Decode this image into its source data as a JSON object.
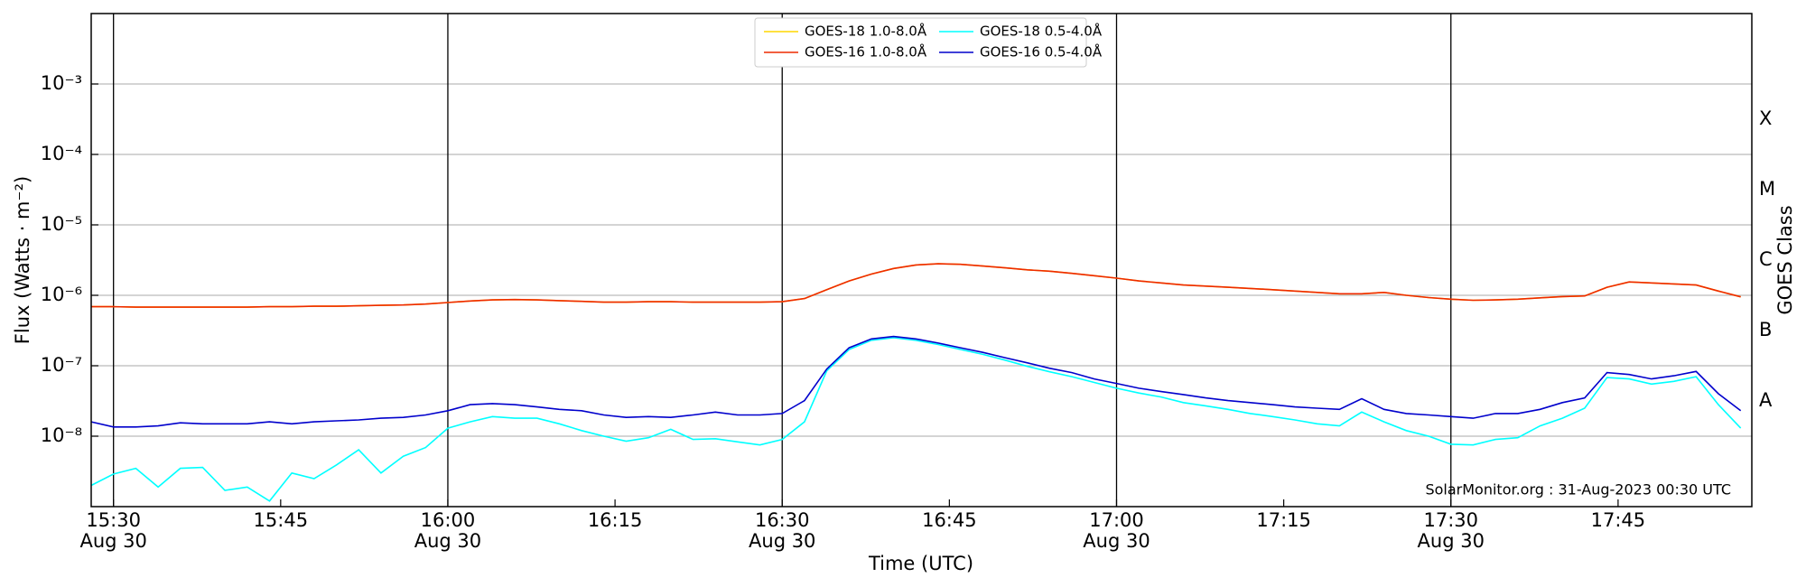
{
  "chart_data": {
    "type": "line",
    "y_label": "Flux (Watts · m⁻²)",
    "x_label": "Time (UTC)",
    "y2_label": "GOES Class",
    "annotation": "SolarMonitor.org : 31-Aug-2023 00:30 UTC",
    "log_y": true,
    "grid": true,
    "legend": "upper center",
    "xlim": [
      "15:28",
      "17:57"
    ],
    "xticks": [
      {
        "value": "15:30",
        "label": "15:30",
        "date": "Aug 30"
      },
      {
        "value": "15:45",
        "label": "15:45"
      },
      {
        "value": "16:00",
        "label": "16:00",
        "date": "Aug 30"
      },
      {
        "value": "16:15",
        "label": "16:15"
      },
      {
        "value": "16:30",
        "label": "16:30",
        "date": "Aug 30"
      },
      {
        "value": "16:45",
        "label": "16:45"
      },
      {
        "value": "17:00",
        "label": "17:00",
        "date": "Aug 30"
      },
      {
        "value": "17:15",
        "label": "17:15"
      },
      {
        "value": "17:30",
        "label": "17:30",
        "date": "Aug 30"
      },
      {
        "value": "17:45",
        "label": "17:45"
      }
    ],
    "ylim": [
      1e-09,
      0.01
    ],
    "yticks": [
      {
        "value": 1e-08,
        "label": "10⁻⁸"
      },
      {
        "value": 1e-07,
        "label": "10⁻⁷"
      },
      {
        "value": 1e-06,
        "label": "10⁻⁶"
      },
      {
        "value": 1e-05,
        "label": "10⁻⁵"
      },
      {
        "value": 0.0001,
        "label": "10⁻⁴"
      },
      {
        "value": 0.001,
        "label": "10⁻³"
      }
    ],
    "y2ticks": [
      {
        "value": 1e-08,
        "label": "A"
      },
      {
        "value": 1e-07,
        "label": "B"
      },
      {
        "value": 1e-06,
        "label": "C"
      },
      {
        "value": 1e-05,
        "label": "M"
      },
      {
        "value": 0.0001,
        "label": "X"
      }
    ],
    "x": [
      "15:28",
      "15:30",
      "15:32",
      "15:34",
      "15:36",
      "15:38",
      "15:40",
      "15:42",
      "15:44",
      "15:46",
      "15:48",
      "15:50",
      "15:52",
      "15:54",
      "15:56",
      "15:58",
      "16:00",
      "16:02",
      "16:04",
      "16:06",
      "16:08",
      "16:10",
      "16:12",
      "16:14",
      "16:16",
      "16:18",
      "16:20",
      "16:22",
      "16:24",
      "16:26",
      "16:28",
      "16:30",
      "16:32",
      "16:34",
      "16:36",
      "16:38",
      "16:40",
      "16:42",
      "16:44",
      "16:46",
      "16:48",
      "16:50",
      "16:52",
      "16:54",
      "16:56",
      "16:58",
      "17:00",
      "17:02",
      "17:04",
      "17:06",
      "17:08",
      "17:10",
      "17:12",
      "17:14",
      "17:16",
      "17:18",
      "17:20",
      "17:22",
      "17:24",
      "17:26",
      "17:28",
      "17:30",
      "17:32",
      "17:34",
      "17:36",
      "17:38",
      "17:40",
      "17:42",
      "17:44",
      "17:46",
      "17:48",
      "17:50",
      "17:52",
      "17:54",
      "17:56"
    ],
    "series": [
      {
        "name": "GOES-18 1.0-8.0Å",
        "color": "#ffd700",
        "values": [
          6.9e-07,
          6.9e-07,
          6.8e-07,
          6.8e-07,
          6.8e-07,
          6.8e-07,
          6.8e-07,
          6.8e-07,
          6.9e-07,
          6.9e-07,
          7e-07,
          7e-07,
          7.1e-07,
          7.2e-07,
          7.3e-07,
          7.5e-07,
          7.9e-07,
          8.3e-07,
          8.6e-07,
          8.7e-07,
          8.6e-07,
          8.4e-07,
          8.2e-07,
          8e-07,
          8e-07,
          8.1e-07,
          8.1e-07,
          8e-07,
          8e-07,
          8e-07,
          8e-07,
          8.1e-07,
          9e-07,
          1.2e-06,
          1.6e-06,
          2e-06,
          2.4e-06,
          2.7e-06,
          2.8e-06,
          2.75e-06,
          2.6e-06,
          2.45e-06,
          2.3e-06,
          2.2e-06,
          2.05e-06,
          1.9e-06,
          1.75e-06,
          1.6e-06,
          1.5e-06,
          1.4e-06,
          1.35e-06,
          1.3e-06,
          1.25e-06,
          1.2e-06,
          1.15e-06,
          1.1e-06,
          1.05e-06,
          1.05e-06,
          1.1e-06,
          1e-06,
          9.3e-07,
          8.8e-07,
          8.5e-07,
          8.6e-07,
          8.8e-07,
          9.2e-07,
          9.6e-07,
          9.8e-07,
          1.3e-06,
          1.55e-06,
          1.5e-06,
          1.45e-06,
          1.4e-06,
          1.15e-06,
          9.5e-07
        ]
      },
      {
        "name": "GOES-16 1.0-8.0Å",
        "color": "#ee2a00",
        "values": [
          6.9e-07,
          6.9e-07,
          6.8e-07,
          6.8e-07,
          6.8e-07,
          6.8e-07,
          6.8e-07,
          6.8e-07,
          6.9e-07,
          6.9e-07,
          7e-07,
          7e-07,
          7.1e-07,
          7.2e-07,
          7.3e-07,
          7.5e-07,
          7.9e-07,
          8.3e-07,
          8.6e-07,
          8.7e-07,
          8.6e-07,
          8.4e-07,
          8.2e-07,
          8e-07,
          8e-07,
          8.1e-07,
          8.1e-07,
          8e-07,
          8e-07,
          8e-07,
          8e-07,
          8.1e-07,
          9e-07,
          1.2e-06,
          1.6e-06,
          2e-06,
          2.4e-06,
          2.7e-06,
          2.8e-06,
          2.75e-06,
          2.6e-06,
          2.45e-06,
          2.3e-06,
          2.2e-06,
          2.05e-06,
          1.9e-06,
          1.75e-06,
          1.6e-06,
          1.5e-06,
          1.4e-06,
          1.35e-06,
          1.3e-06,
          1.25e-06,
          1.2e-06,
          1.15e-06,
          1.1e-06,
          1.05e-06,
          1.05e-06,
          1.1e-06,
          1e-06,
          9.3e-07,
          8.8e-07,
          8.5e-07,
          8.6e-07,
          8.8e-07,
          9.2e-07,
          9.6e-07,
          9.8e-07,
          1.3e-06,
          1.55e-06,
          1.5e-06,
          1.45e-06,
          1.4e-06,
          1.15e-06,
          9.5e-07
        ]
      },
      {
        "name": "GOES-18 0.5-4.0Å",
        "color": "#00ffff",
        "values": [
          2e-09,
          2.9e-09,
          3.5e-09,
          1.9e-09,
          3.5e-09,
          3.6e-09,
          1.7e-09,
          1.9e-09,
          1.2e-09,
          3e-09,
          2.5e-09,
          3.9e-09,
          6.4e-09,
          3e-09,
          5.2e-09,
          6.9e-09,
          1.3e-08,
          1.6e-08,
          1.9e-08,
          1.8e-08,
          1.8e-08,
          1.5e-08,
          1.2e-08,
          1e-08,
          8.5e-09,
          9.5e-09,
          1.25e-08,
          9e-09,
          9.2e-09,
          8.3e-09,
          7.5e-09,
          9e-09,
          1.6e-08,
          8.5e-08,
          1.7e-07,
          2.3e-07,
          2.5e-07,
          2.3e-07,
          2e-07,
          1.7e-07,
          1.45e-07,
          1.2e-07,
          9.8e-08,
          8.2e-08,
          7e-08,
          5.8e-08,
          4.8e-08,
          4.1e-08,
          3.6e-08,
          3e-08,
          2.7e-08,
          2.4e-08,
          2.1e-08,
          1.9e-08,
          1.7e-08,
          1.5e-08,
          1.4e-08,
          2.2e-08,
          1.6e-08,
          1.2e-08,
          1e-08,
          7.7e-09,
          7.5e-09,
          9e-09,
          9.5e-09,
          1.4e-08,
          1.8e-08,
          2.5e-08,
          6.8e-08,
          6.5e-08,
          5.5e-08,
          6e-08,
          7e-08,
          2.8e-08,
          1.3e-08
        ]
      },
      {
        "name": "GOES-16 0.5-4.0Å",
        "color": "#0000cc",
        "values": [
          1.6e-08,
          1.35e-08,
          1.35e-08,
          1.4e-08,
          1.55e-08,
          1.5e-08,
          1.5e-08,
          1.5e-08,
          1.6e-08,
          1.5e-08,
          1.6e-08,
          1.65e-08,
          1.7e-08,
          1.8e-08,
          1.85e-08,
          2e-08,
          2.3e-08,
          2.8e-08,
          2.9e-08,
          2.8e-08,
          2.6e-08,
          2.4e-08,
          2.3e-08,
          2e-08,
          1.85e-08,
          1.9e-08,
          1.85e-08,
          2e-08,
          2.2e-08,
          2e-08,
          2e-08,
          2.1e-08,
          3.2e-08,
          9e-08,
          1.8e-07,
          2.4e-07,
          2.6e-07,
          2.4e-07,
          2.1e-07,
          1.8e-07,
          1.55e-07,
          1.3e-07,
          1.1e-07,
          9.2e-08,
          8e-08,
          6.5e-08,
          5.6e-08,
          4.8e-08,
          4.3e-08,
          3.9e-08,
          3.5e-08,
          3.2e-08,
          3e-08,
          2.8e-08,
          2.6e-08,
          2.5e-08,
          2.4e-08,
          3.4e-08,
          2.4e-08,
          2.1e-08,
          2e-08,
          1.9e-08,
          1.8e-08,
          2.1e-08,
          2.1e-08,
          2.4e-08,
          3e-08,
          3.5e-08,
          8e-08,
          7.5e-08,
          6.5e-08,
          7.2e-08,
          8.3e-08,
          4e-08,
          2.3e-08
        ]
      }
    ]
  }
}
